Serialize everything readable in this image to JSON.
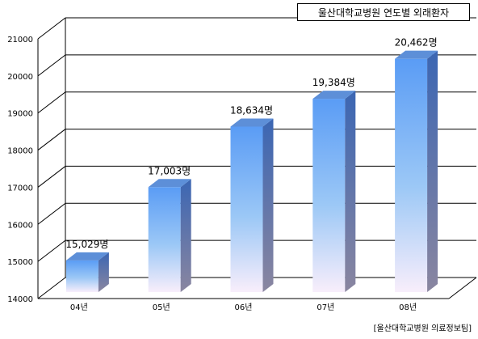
{
  "chart_data": {
    "type": "bar",
    "title": "울산대학교병원 연도별 외래환자",
    "categories": [
      "04년",
      "05년",
      "06년",
      "07년",
      "08년"
    ],
    "values": [
      15029,
      17003,
      18634,
      19384,
      20462
    ],
    "data_labels": [
      "15,029명",
      "17,003명",
      "18,634명",
      "19,384명",
      "20,462명"
    ],
    "ylim": [
      14000,
      21000
    ],
    "yticks": [
      14000,
      15000,
      16000,
      17000,
      18000,
      19000,
      20000,
      21000
    ],
    "ytick_labels": [
      "14000",
      "15000",
      "16000",
      "17000",
      "18000",
      "19000",
      "20000",
      "21000"
    ],
    "grid": true,
    "style": "3d-column",
    "bar_color_top": "#5a9cf5",
    "bar_color_bottom": "#f7eefb",
    "bar_side_color": "#3a64b0",
    "source": "[울산대학교병원 의료정보팀]"
  }
}
